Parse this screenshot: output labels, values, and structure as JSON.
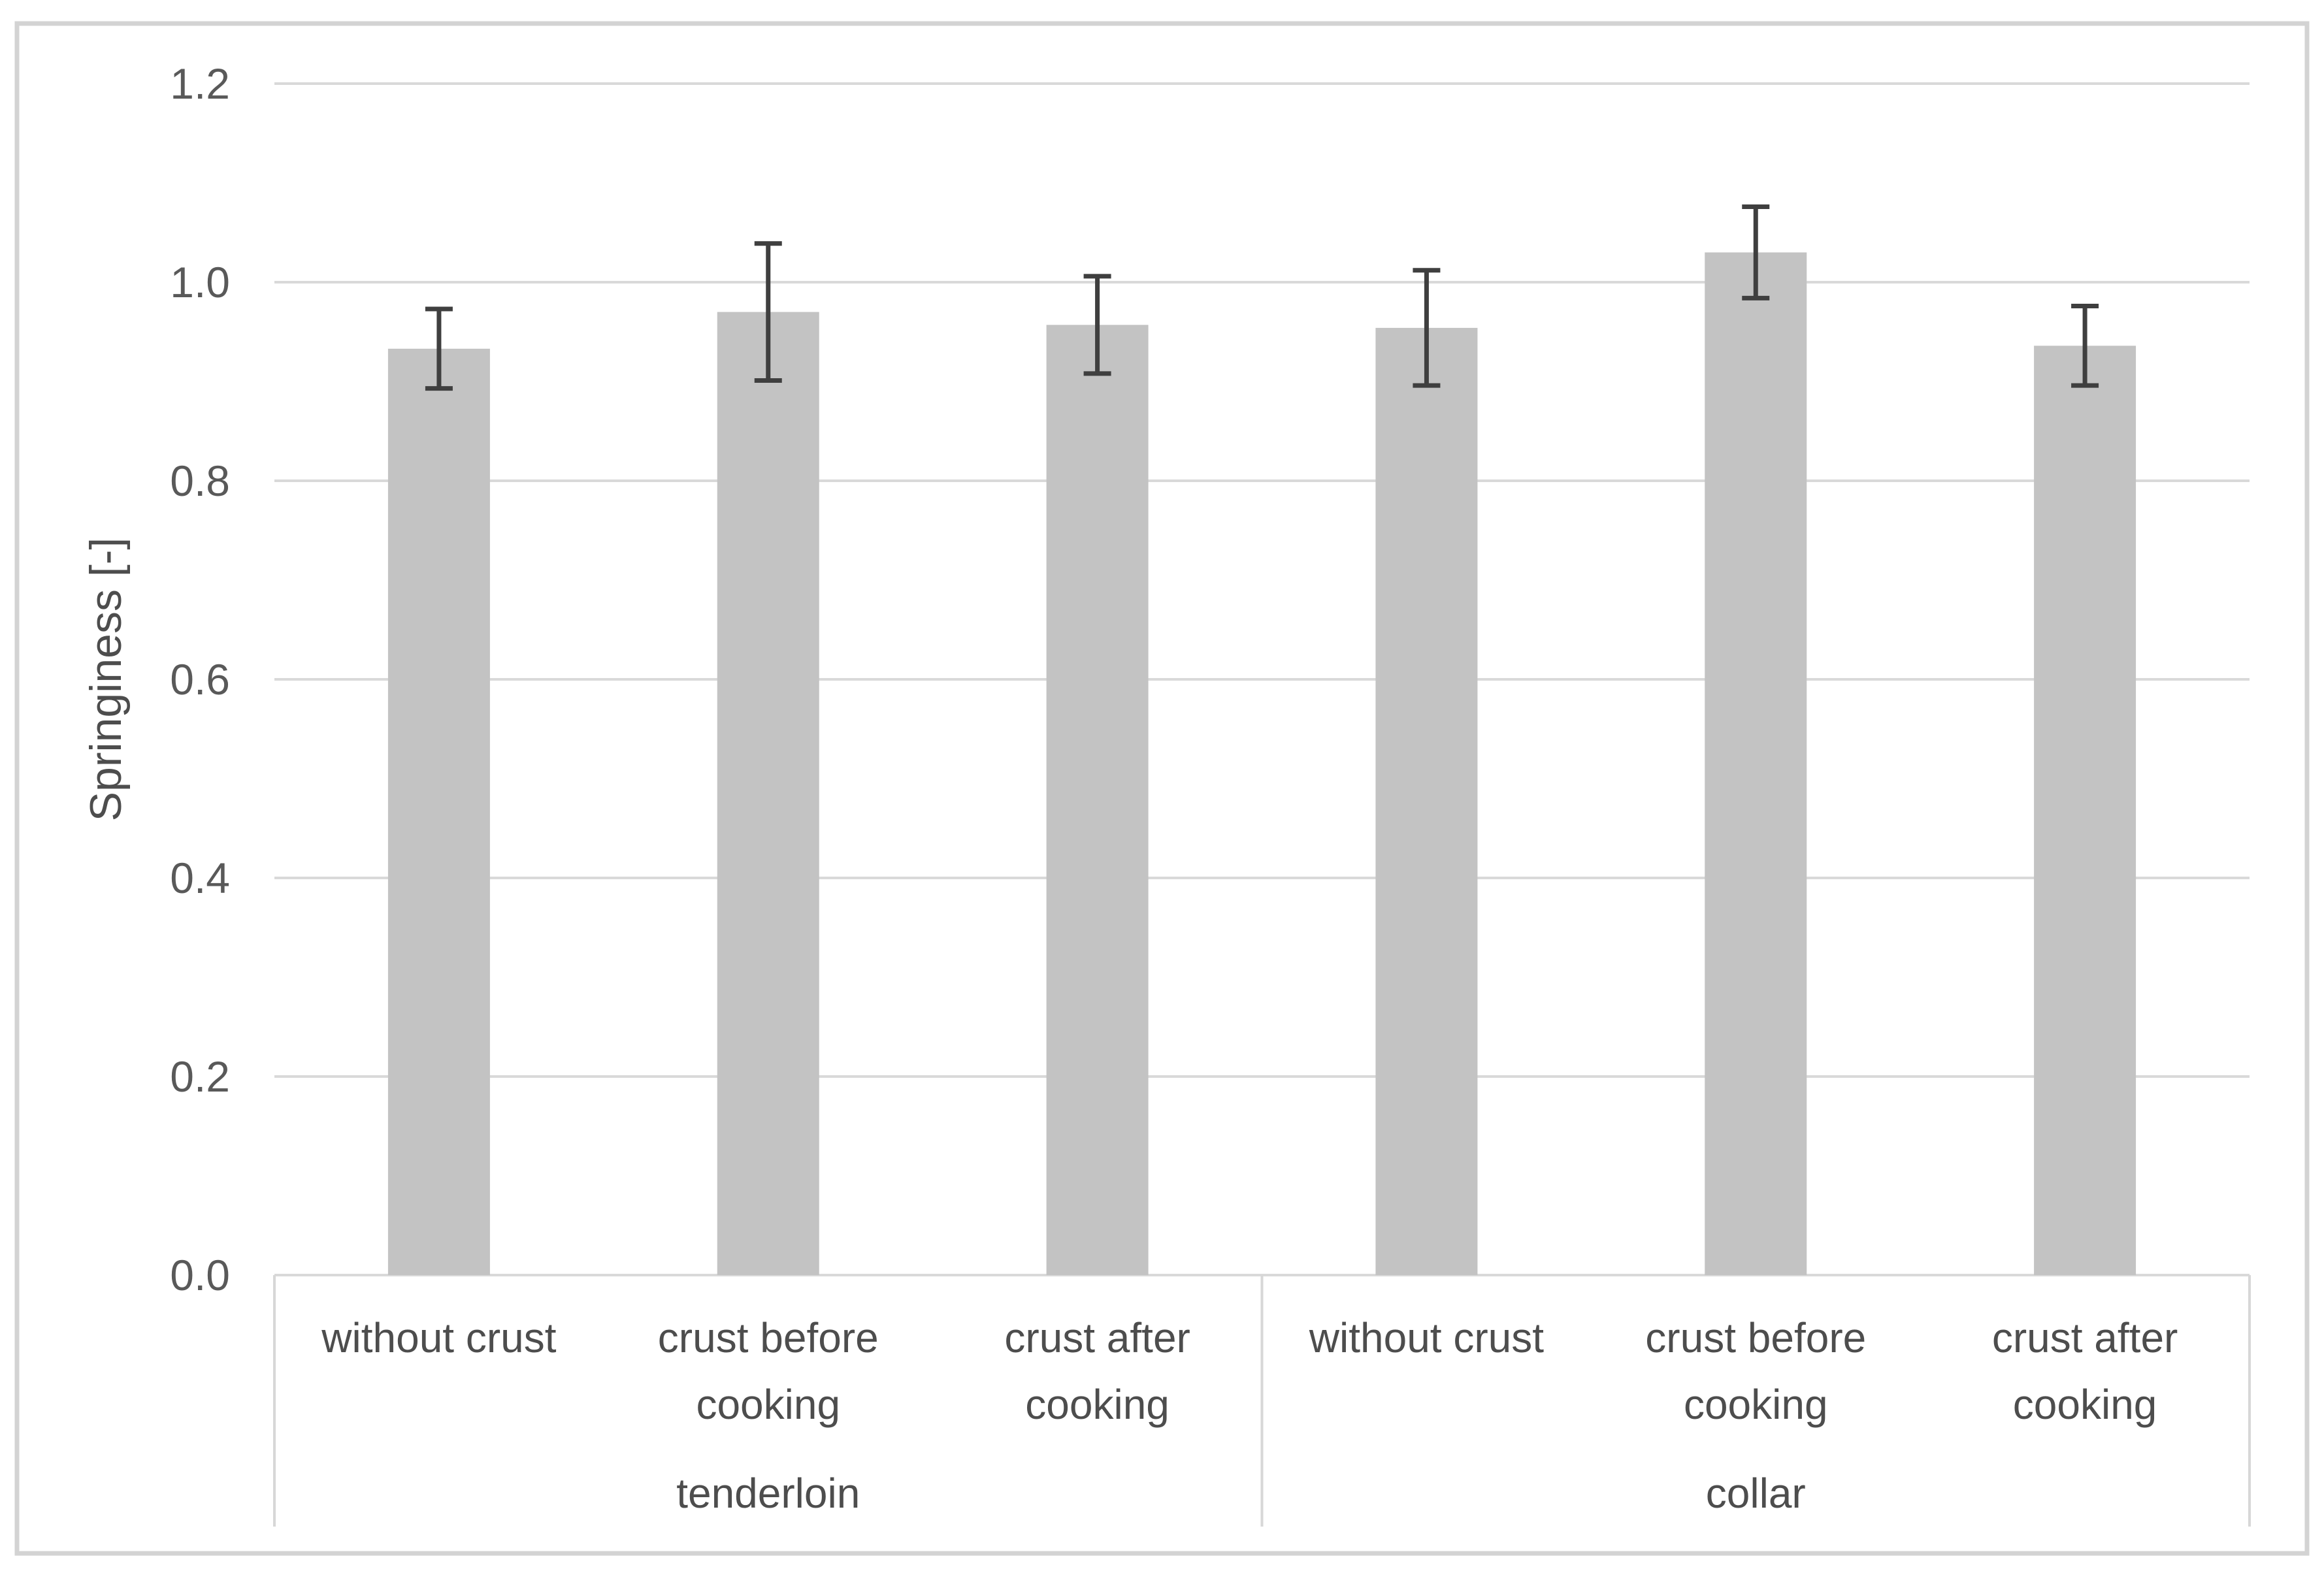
{
  "chart_data": {
    "type": "bar",
    "title": "",
    "ylabel": "Springiness [-]",
    "xlabel": "",
    "ylim": [
      0,
      1.2
    ],
    "ytick_step": 0.2,
    "ytick_labels": [
      "0.0",
      "0.2",
      "0.4",
      "0.6",
      "0.8",
      "1.0",
      "1.2"
    ],
    "grid": "horizontal",
    "legend": "none",
    "error_bars": "both-directions",
    "groups": [
      {
        "label": "tenderloin",
        "categories": [
          {
            "label": "without crust",
            "lines": [
              "without crust"
            ]
          },
          {
            "label": "crust before cooking",
            "lines": [
              "crust before",
              "cooking"
            ]
          },
          {
            "label": "crust after cooking",
            "lines": [
              "crust after",
              "cooking"
            ]
          }
        ],
        "values": [
          0.933,
          0.97,
          0.957
        ],
        "errors": [
          0.04,
          0.069,
          0.049
        ]
      },
      {
        "label": "collar",
        "categories": [
          {
            "label": "without crust",
            "lines": [
              "without crust"
            ]
          },
          {
            "label": "crust before cooking",
            "lines": [
              "crust before",
              "cooking"
            ]
          },
          {
            "label": "crust after cooking",
            "lines": [
              "crust after",
              "cooking"
            ]
          }
        ],
        "values": [
          0.954,
          1.03,
          0.936
        ],
        "errors": [
          0.058,
          0.046,
          0.04
        ]
      }
    ],
    "colors": {
      "background": "#ffffff",
      "bar_fill": "#c3c3c3",
      "error_bar": "#3f3f3f",
      "gridline": "#d9d9d9",
      "axis_line": "#d7d7d7",
      "outer_border": "#d3d3d3",
      "tick_text": "#595959",
      "category_text": "#4d4d4d",
      "group_text": "#4d4d4d",
      "ylabel_text": "#4d4d4d"
    }
  }
}
